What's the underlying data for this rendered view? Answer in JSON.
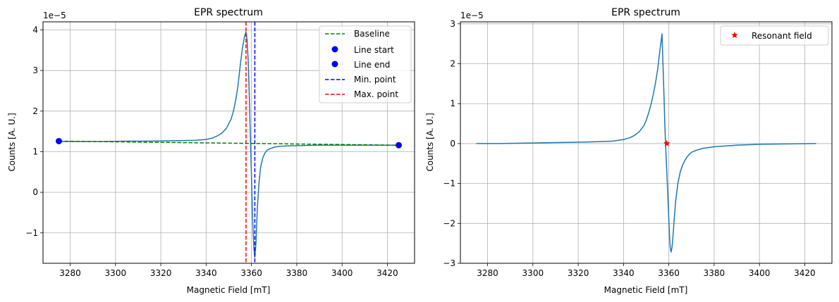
{
  "chart_data": [
    {
      "type": "line",
      "title": "EPR spectrum",
      "xlabel": "Magnetic Field [mT]",
      "ylabel": "Counts [A. U.]",
      "offset_text": "1e−5",
      "xlim": [
        3268,
        3432
      ],
      "ylim": [
        -1.75,
        4.2
      ],
      "xticks": [
        3280,
        3300,
        3320,
        3340,
        3360,
        3380,
        3400,
        3420
      ],
      "yticks": [
        -1,
        0,
        1,
        2,
        3,
        4
      ],
      "ytick_labels": [
        "−1",
        "0",
        "1",
        "2",
        "3",
        "4"
      ],
      "grid": true,
      "legend_position": "top-right",
      "series": [
        {
          "kind": "curve",
          "color": "#1f77b4",
          "x": [
            3275,
            3285,
            3295,
            3305,
            3315,
            3325,
            3335,
            3340,
            3343,
            3345,
            3347,
            3349,
            3351,
            3352,
            3353,
            3354,
            3355,
            3356,
            3357,
            3357.6,
            3358.1,
            3358.6,
            3359.1,
            3359.6,
            3360.1,
            3360.6,
            3361.1,
            3361.5,
            3362.0,
            3362.6,
            3363.3,
            3364,
            3365,
            3366,
            3367,
            3368,
            3370,
            3372,
            3375,
            3380,
            3390,
            3400,
            3410,
            3425
          ],
          "y": [
            1.25,
            1.25,
            1.25,
            1.26,
            1.26,
            1.27,
            1.28,
            1.3,
            1.34,
            1.39,
            1.46,
            1.58,
            1.8,
            1.99,
            2.25,
            2.6,
            3.1,
            3.55,
            3.85,
            3.95,
            3.75,
            3.2,
            2.3,
            1.2,
            0.2,
            -0.8,
            -1.4,
            -1.6,
            -1.25,
            -0.4,
            0.2,
            0.6,
            0.85,
            0.97,
            1.04,
            1.07,
            1.11,
            1.13,
            1.14,
            1.15,
            1.16,
            1.16,
            1.16,
            1.16
          ]
        },
        {
          "name": "Baseline",
          "kind": "dashed-line",
          "color": "#008000",
          "x": [
            3275,
            3425
          ],
          "y": [
            1.26,
            1.16
          ]
        },
        {
          "name": "Line start",
          "kind": "marker",
          "color": "#0000ff",
          "x": [
            3275
          ],
          "y": [
            1.26
          ]
        },
        {
          "name": "Line end",
          "kind": "marker",
          "color": "#0000ff",
          "x": [
            3425
          ],
          "y": [
            1.16
          ]
        },
        {
          "name": "Min. point",
          "kind": "vline",
          "color": "#0000ff",
          "x": [
            3361.5
          ]
        },
        {
          "name": "Max. point",
          "kind": "vline",
          "color": "#ff0000",
          "x": [
            3357.6
          ]
        }
      ]
    },
    {
      "type": "line",
      "title": "EPR spectrum",
      "xlabel": "Magnetic Field [mT]",
      "ylabel": "Counts [A. U.]",
      "offset_text": "1e−5",
      "xlim": [
        3268,
        3432
      ],
      "ylim": [
        -3,
        3.05
      ],
      "xticks": [
        3280,
        3300,
        3320,
        3340,
        3360,
        3380,
        3400,
        3420
      ],
      "yticks": [
        -3,
        -2,
        -1,
        0,
        1,
        2,
        3
      ],
      "ytick_labels": [
        "−3",
        "−2",
        "−1",
        "0",
        "1",
        "2",
        "3"
      ],
      "grid": true,
      "legend_position": "top-right",
      "series": [
        {
          "kind": "curve",
          "color": "#1f77b4",
          "x": [
            3275,
            3285,
            3295,
            3305,
            3315,
            3325,
            3335,
            3340,
            3343,
            3345,
            3347,
            3349,
            3350,
            3351,
            3352,
            3353,
            3354,
            3355,
            3356,
            3357,
            3357.7,
            3358.4,
            3359.1,
            3359.7,
            3360.2,
            3360.6,
            3361.0,
            3361.4,
            3361.8,
            3362.3,
            3363,
            3364,
            3365,
            3366,
            3367,
            3368,
            3369,
            3370,
            3372,
            3375,
            3380,
            3390,
            3400,
            3410,
            3425
          ],
          "y": [
            0,
            0,
            0.01,
            0.02,
            0.03,
            0.04,
            0.06,
            0.1,
            0.15,
            0.21,
            0.3,
            0.45,
            0.58,
            0.75,
            0.95,
            1.2,
            1.48,
            1.83,
            2.3,
            2.75,
            1.5,
            0.2,
            -0.7,
            -1.5,
            -2.2,
            -2.6,
            -2.72,
            -2.6,
            -2.35,
            -1.95,
            -1.45,
            -1.0,
            -0.72,
            -0.55,
            -0.43,
            -0.34,
            -0.27,
            -0.22,
            -0.17,
            -0.12,
            -0.08,
            -0.04,
            -0.02,
            -0.01,
            0
          ]
        },
        {
          "name": "Resonant field",
          "kind": "star",
          "color": "#ff0000",
          "x": [
            3359.1
          ],
          "y": [
            0
          ]
        }
      ]
    }
  ]
}
